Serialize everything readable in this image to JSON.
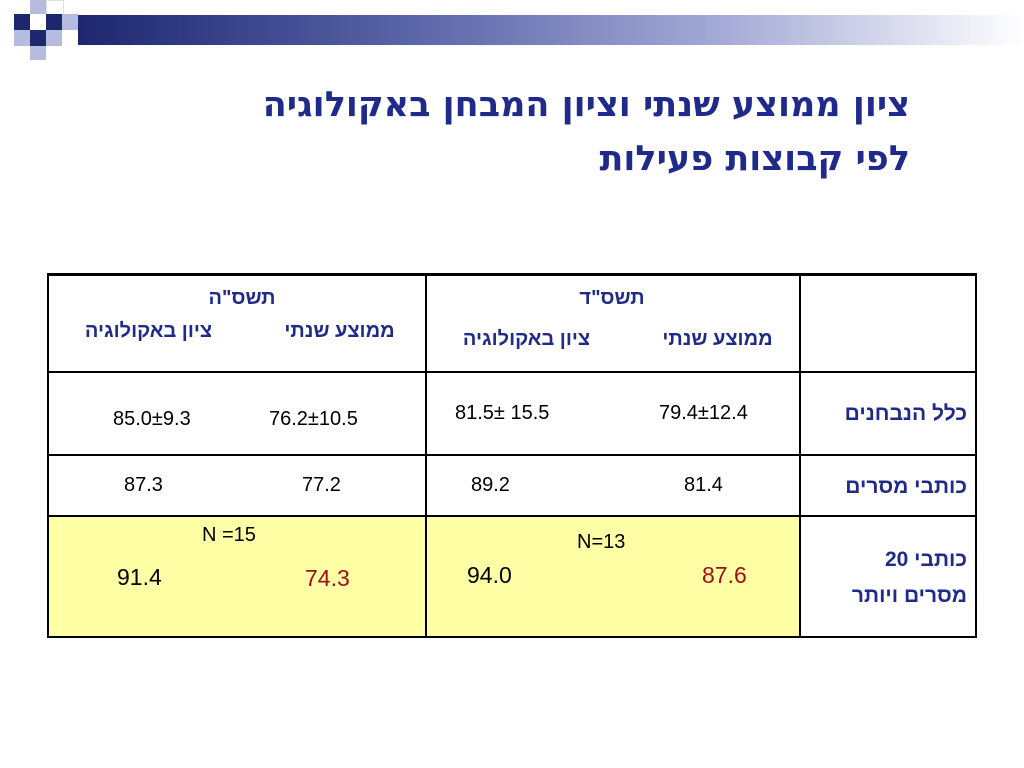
{
  "title": {
    "line1": "ציון ממוצע שנתי וציון המבחן באקולוגיה",
    "line2": "לפי קבוצות פעילות"
  },
  "table": {
    "year_tashsad": "תשס\"ד",
    "year_tashsah": "תשס\"ה",
    "col_annual": "ממוצע שנתי",
    "col_ecology": "ציון באקולוגיה",
    "rows": [
      {
        "label": "כלל הנבחנים",
        "tashsad_annual": "79.4±12.4",
        "tashsad_ecology": "81.5± 15.5",
        "tashsah_annual": "76.2±10.5",
        "tashsah_ecology": "85.0±9.3"
      },
      {
        "label": "כותבי מסרים",
        "tashsad_annual": "81.4",
        "tashsad_ecology": "89.2",
        "tashsah_annual": "77.2",
        "tashsah_ecology": "87.3"
      },
      {
        "label_line1": "כותבי 20",
        "label_line2": "מסרים ויותר",
        "tashsad_n": "N=13",
        "tashsah_n": "N =15",
        "tashsad_annual": "87.6",
        "tashsad_ecology": "94.0",
        "tashsah_annual": "74.3",
        "tashsah_ecology": "91.4"
      }
    ]
  },
  "colors": {
    "title": "#1f2a8a",
    "highlight_row": "#ffffa6",
    "annual_emphasis": "#a00f14"
  }
}
